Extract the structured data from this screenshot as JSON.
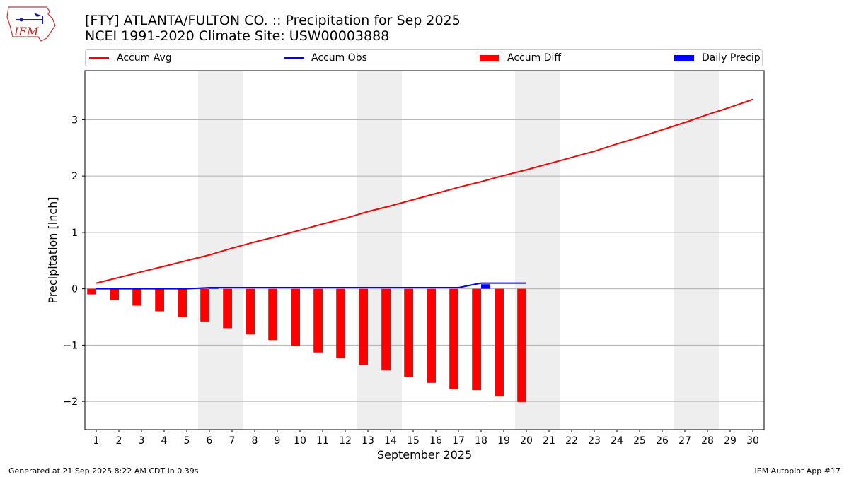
{
  "header": {
    "title_line1": "[FTY] ATLANTA/FULTON CO. :: Precipitation for Sep 2025",
    "title_line2": "NCEI 1991-2020 Climate Site: USW00003888",
    "logo_text": "IEM"
  },
  "legend": [
    {
      "label": "Accum Avg",
      "kind": "line",
      "color": "#ff0000"
    },
    {
      "label": "Accum Obs",
      "kind": "line",
      "color": "#0000ff"
    },
    {
      "label": "Accum Diff",
      "kind": "bar",
      "color": "#ff0000"
    },
    {
      "label": "Daily Precip",
      "kind": "bar",
      "color": "#0000ff"
    }
  ],
  "footer": {
    "left": "Generated at 21 Sep 2025 8:22 AM CDT in 0.39s",
    "right": "IEM Autoplot App #17"
  },
  "colors": {
    "accum_avg": "#ff0000",
    "accum_obs": "#0000ff",
    "accum_diff": "#ff0000",
    "daily_precip": "#0000ff",
    "weekend_shade": "#eeeeee",
    "grid": "#b0b0b0"
  },
  "chart_data": {
    "type": "line",
    "title": "[FTY] ATLANTA/FULTON CO. :: Precipitation for Sep 2025",
    "subtitle": "NCEI 1991-2020 Climate Site: USW00003888",
    "xlabel": "September 2025",
    "ylabel": "Precipitation [inch]",
    "x": [
      1,
      2,
      3,
      4,
      5,
      6,
      7,
      8,
      9,
      10,
      11,
      12,
      13,
      14,
      15,
      16,
      17,
      18,
      19,
      20,
      21,
      22,
      23,
      24,
      25,
      26,
      27,
      28,
      29,
      30
    ],
    "xlim": [
      0.5,
      30.5
    ],
    "ylim": [
      -2.5,
      3.87
    ],
    "yticks": [
      -2,
      -1,
      0,
      1,
      2,
      3
    ],
    "ytick_labels": [
      "−2",
      "−1",
      "0",
      "1",
      "2",
      "3"
    ],
    "grid": "horizontal",
    "legend_position": "top",
    "weekend_shading": [
      [
        5.5,
        7.5
      ],
      [
        12.5,
        14.5
      ],
      [
        19.5,
        21.5
      ],
      [
        26.5,
        28.5
      ]
    ],
    "series": [
      {
        "name": "Accum Avg",
        "kind": "line",
        "values": [
          0.1,
          0.2,
          0.3,
          0.4,
          0.5,
          0.6,
          0.72,
          0.83,
          0.93,
          1.04,
          1.15,
          1.25,
          1.37,
          1.47,
          1.58,
          1.69,
          1.8,
          1.9,
          2.01,
          2.11,
          2.22,
          2.33,
          2.44,
          2.57,
          2.69,
          2.82,
          2.95,
          3.09,
          3.22,
          3.36
        ]
      },
      {
        "name": "Accum Obs",
        "kind": "line",
        "x": [
          1,
          2,
          3,
          4,
          5,
          6,
          7,
          8,
          9,
          10,
          11,
          12,
          13,
          14,
          15,
          16,
          17,
          18,
          19,
          20
        ],
        "values": [
          0,
          0,
          0,
          0,
          0,
          0.02,
          0.02,
          0.02,
          0.02,
          0.02,
          0.02,
          0.02,
          0.02,
          0.02,
          0.02,
          0.02,
          0.02,
          0.1,
          0.1,
          0.1
        ]
      },
      {
        "name": "Accum Diff",
        "kind": "bar",
        "x": [
          1,
          2,
          3,
          4,
          5,
          6,
          7,
          8,
          9,
          10,
          11,
          12,
          13,
          14,
          15,
          16,
          17,
          18,
          19,
          20
        ],
        "values": [
          -0.1,
          -0.2,
          -0.3,
          -0.4,
          -0.5,
          -0.58,
          -0.7,
          -0.81,
          -0.91,
          -1.02,
          -1.13,
          -1.23,
          -1.35,
          -1.45,
          -1.56,
          -1.67,
          -1.78,
          -1.8,
          -1.91,
          -2.01
        ]
      },
      {
        "name": "Daily Precip",
        "kind": "bar",
        "x": [
          6,
          18
        ],
        "values": [
          0.02,
          0.08
        ]
      }
    ]
  }
}
